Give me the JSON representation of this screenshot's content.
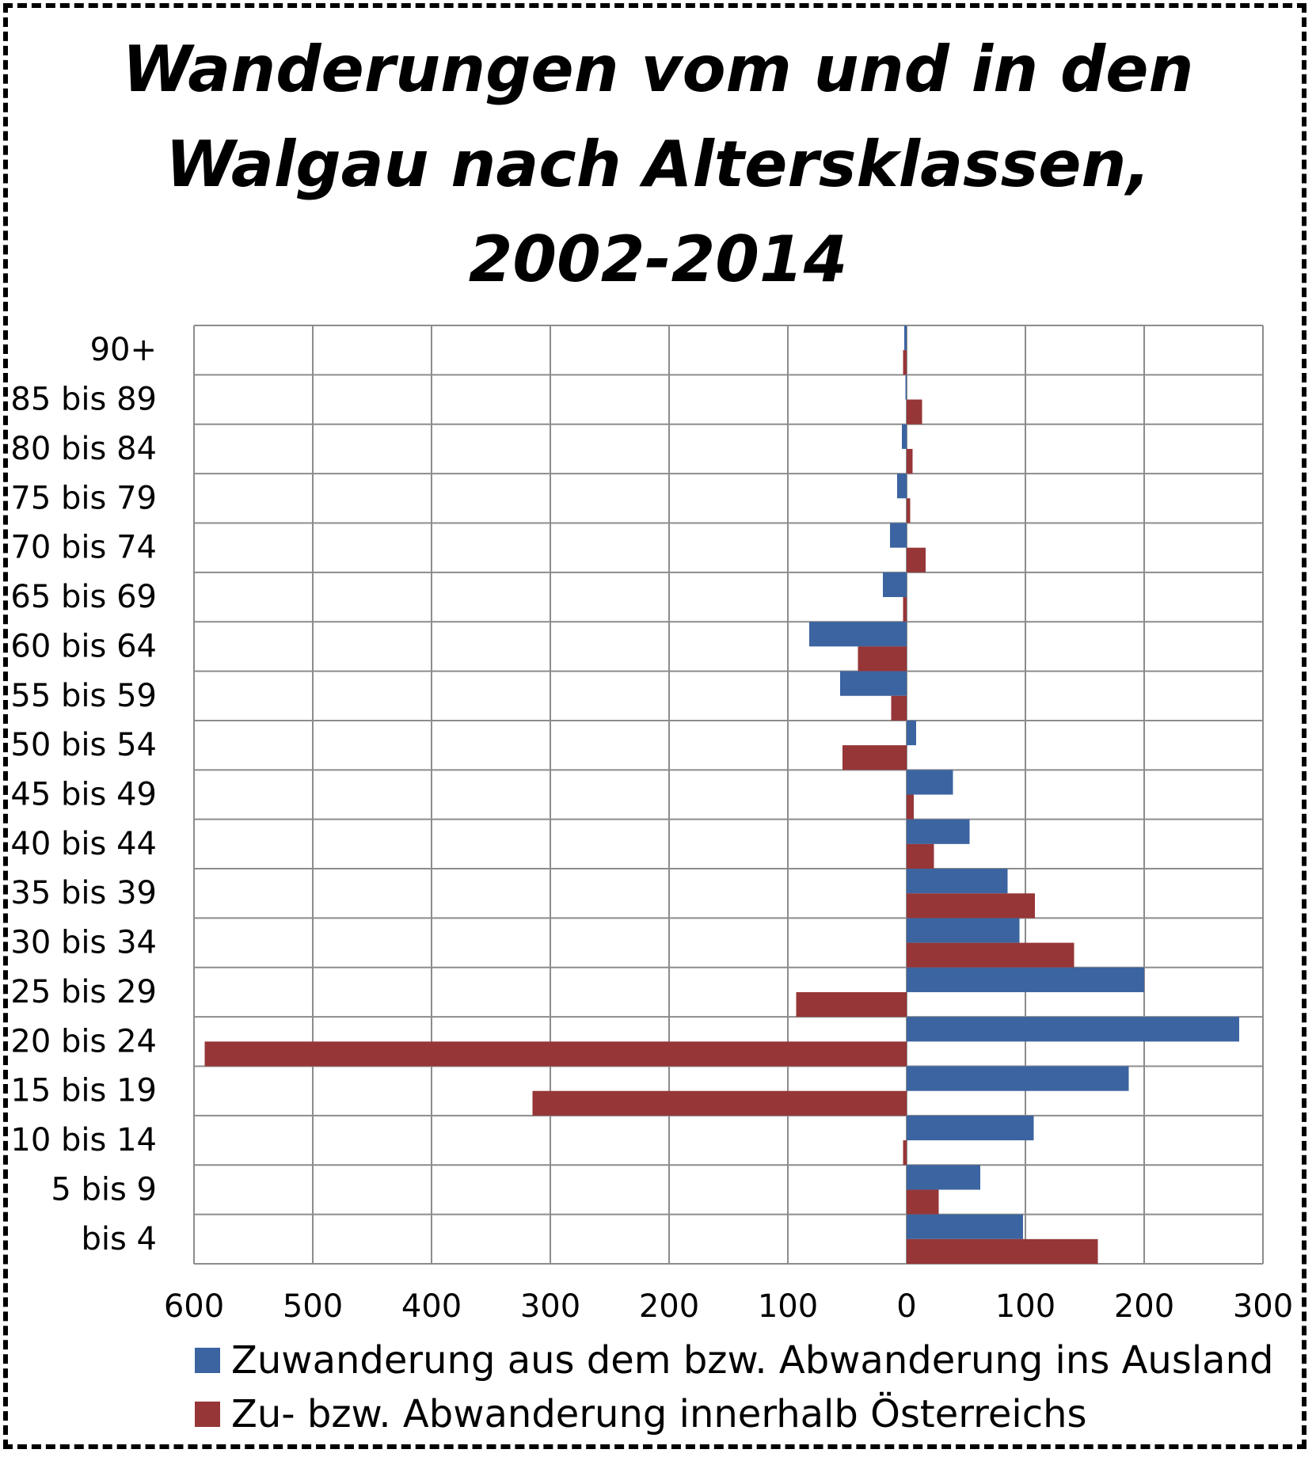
{
  "chart_data": {
    "type": "bar",
    "orientation": "horizontal",
    "title_lines": [
      "Wanderungen vom und in den",
      "Walgau nach Altersklassen,",
      "2002-2014"
    ],
    "categories": [
      "90+",
      "85 bis 89",
      "80 bis 84",
      "75 bis 79",
      "70 bis 74",
      "65 bis 69",
      "60 bis 64",
      "55 bis 59",
      "50 bis 54",
      "45 bis 49",
      "40 bis 44",
      "35 bis 39",
      "30 bis 34",
      "25 bis 29",
      "20 bis 24",
      "15 bis 19",
      "10 bis 14",
      "5 bis 9",
      "bis 4"
    ],
    "series": [
      {
        "name": "Zuwanderung aus dem bzw. Abwanderung ins Ausland",
        "color": "#3B64A0",
        "values": [
          -2,
          -1,
          -4,
          -8,
          -14,
          -20,
          -82,
          -56,
          8,
          39,
          53,
          85,
          95,
          200,
          280,
          187,
          107,
          62,
          98
        ]
      },
      {
        "name": "Zu- bzw. Abwanderung innerhalb Österreichs",
        "color": "#963637",
        "values": [
          -3,
          13,
          5,
          3,
          16,
          -3,
          -41,
          -13,
          -54,
          6,
          23,
          108,
          141,
          -93,
          -591,
          -315,
          -3,
          27,
          161
        ]
      }
    ],
    "x_ticks": [
      -600,
      -500,
      -400,
      -300,
      -200,
      -100,
      0,
      100,
      200,
      300
    ],
    "x_tick_labels": [
      "600",
      "500",
      "400",
      "300",
      "200",
      "100",
      "0",
      "100",
      "200",
      "300"
    ],
    "xlim": [
      -600,
      300
    ],
    "grid": true,
    "legend_position": "bottom"
  }
}
